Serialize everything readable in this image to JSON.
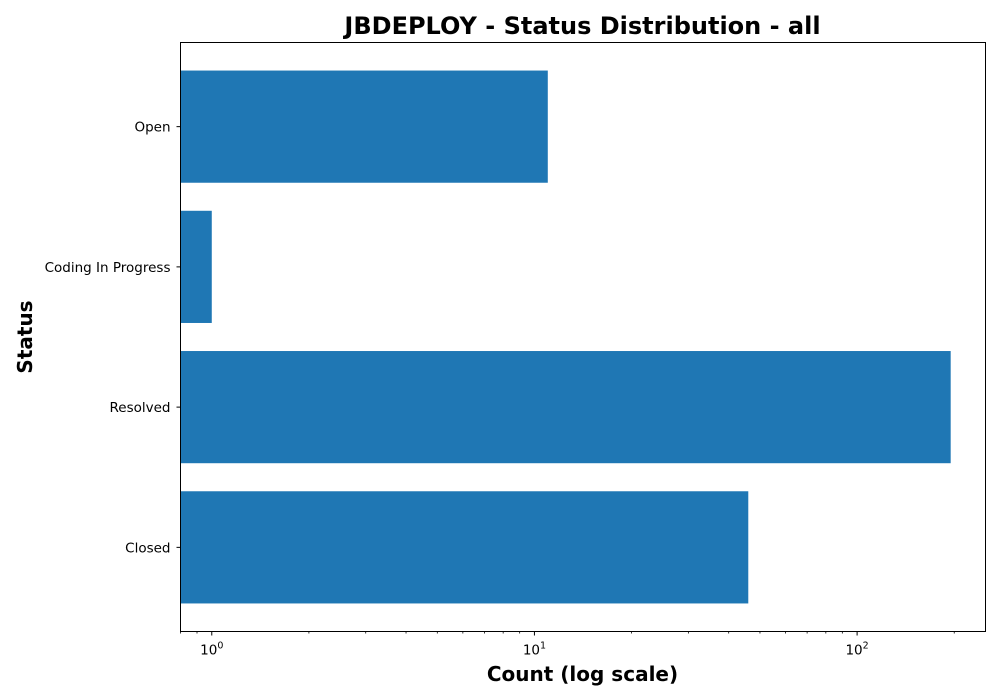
{
  "chart_data": {
    "type": "bar",
    "orientation": "horizontal",
    "title": "JBDEPLOY - Status Distribution - all",
    "xlabel": "Count (log scale)",
    "ylabel": "Status",
    "x_scale": "log",
    "xlim": [
      0.8,
      250
    ],
    "x_ticks": [
      {
        "value": 1,
        "base": "10",
        "exp": "0"
      },
      {
        "value": 10,
        "base": "10",
        "exp": "1"
      },
      {
        "value": 100,
        "base": "10",
        "exp": "2"
      }
    ],
    "categories": [
      "Open",
      "Coding In Progress",
      "Resolved",
      "Closed"
    ],
    "values": [
      11,
      1,
      195,
      46
    ],
    "color": "#1f77b4",
    "grid": false,
    "legend": null
  }
}
